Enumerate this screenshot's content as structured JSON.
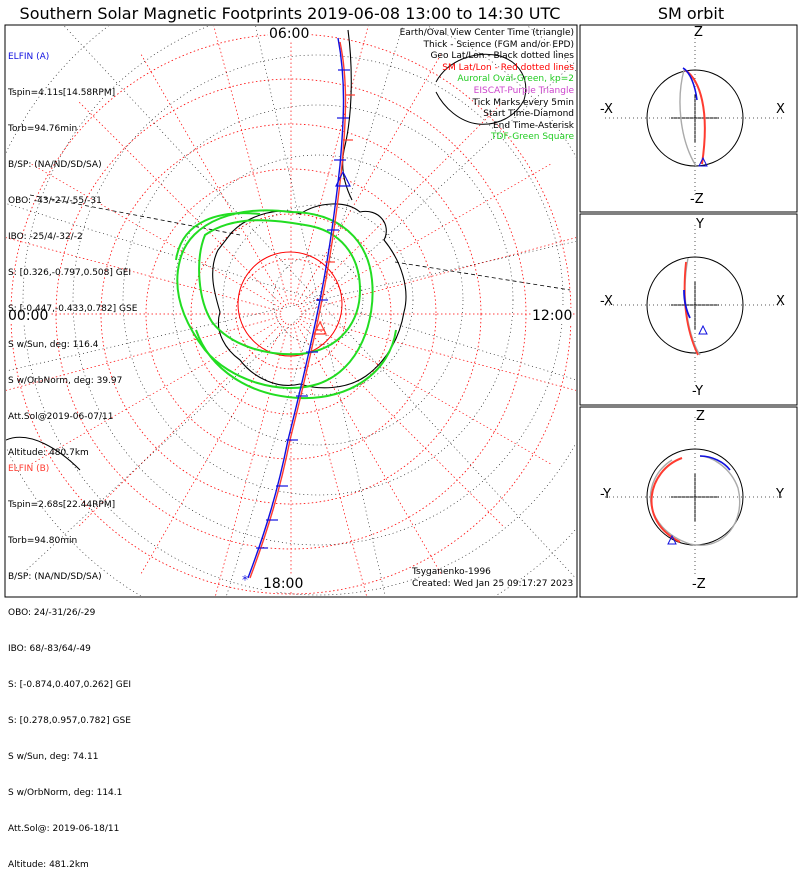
{
  "title": "Southern Solar Magnetic Footprints 2019-06-08 13:00 to 14:30 UTC",
  "orbit_title": "SM orbit",
  "map_labels": {
    "top": "06:00",
    "bottom": "18:00",
    "left": "00:00",
    "right": "12:00"
  },
  "elfin_a": {
    "name": "ELFIN (A)",
    "lines": [
      "Tspin=4.11s[14.58RPM]",
      "Torb=94.76min",
      "B/SP: (NA/ND/SD/SA)",
      "OBO: -43/-27/-55/-31",
      "IBO: -25/4/-32/-2",
      "S: [0.326,-0.797,0.508] GEI",
      "S: [-0.447,-0.433,0.782] GSE",
      "S w/Sun, deg: 116.4",
      "S w/OrbNorm, deg: 39.97",
      "Att.Sol@2019-06-07/11",
      "Altitude: 480.7km"
    ],
    "color": "#1010e0"
  },
  "elfin_b": {
    "name": "ELFIN (B)",
    "lines": [
      "Tspin=2.68s[22.44RPM]",
      "Torb=94.80min",
      "B/SP: (NA/ND/SD/SA)",
      "OBO: 24/-31/26/-29",
      "IBO: 68/-83/64/-49",
      "S: [-0.874,0.407,0.262] GEI",
      "S: [0.278,0.957,0.782] GSE",
      "S w/Sun, deg: 74.11",
      "S w/OrbNorm, deg: 114.1",
      "Att.Sol@: 2019-06-18/11",
      "Altitude: 481.2km"
    ],
    "color": "#ff3b30"
  },
  "legend": [
    {
      "text": "Earth/Oval View Center Time (triangle)",
      "color": "#000000"
    },
    {
      "text": "Thick - Science (FGM and/or EPD)",
      "color": "#000000"
    },
    {
      "text": "Geo Lat/Lon - Black dotted lines",
      "color": "#000000"
    },
    {
      "text": "SM Lat/Lon - Red dotted lines",
      "color": "#ff0000"
    },
    {
      "text": "Auroral Oval-Green, kp=2",
      "color": "#22cc22"
    },
    {
      "text": "EISCAT-Purple Triangle",
      "color": "#cc44cc"
    },
    {
      "text": "Tick Marks every 5min",
      "color": "#000000"
    },
    {
      "text": "Start Time-Diamond",
      "color": "#000000"
    },
    {
      "text": "End Time-Asterisk",
      "color": "#000000"
    },
    {
      "text": "TDF-Green Square",
      "color": "#22cc22"
    }
  ],
  "footer": {
    "credit": "Tsyganenko-1996",
    "created": "Created: Wed Jan 25 09:17:27 2023"
  },
  "orbit_panels": [
    {
      "top": "Z",
      "bottom": "-Z",
      "left": "-X",
      "right": "X"
    },
    {
      "top": "Y",
      "bottom": "-Y",
      "left": "-X",
      "right": "X"
    },
    {
      "top": "Z",
      "bottom": "-Z",
      "left": "-Y",
      "right": "Y"
    }
  ],
  "colors": {
    "sm_grid": "#ff0000",
    "geo_grid": "#000000",
    "oval": "#22dd22",
    "track_a": "#1010e0",
    "track_b": "#ff3b30",
    "orbit_gray": "#aaaaaa"
  }
}
